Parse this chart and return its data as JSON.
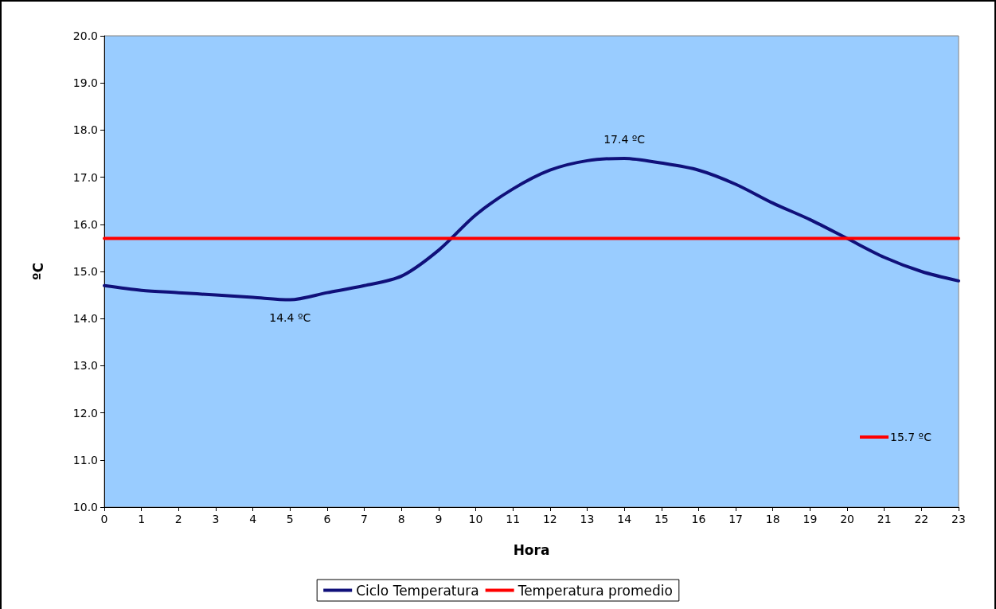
{
  "chart_data": {
    "type": "line",
    "xlabel": "Hora",
    "ylabel": "ºC",
    "x": [
      0,
      1,
      2,
      3,
      4,
      5,
      6,
      7,
      8,
      9,
      10,
      11,
      12,
      13,
      14,
      15,
      16,
      17,
      18,
      19,
      20,
      21,
      22,
      23
    ],
    "series": [
      {
        "name": "Ciclo Temperatura",
        "color": "#10107a",
        "values": [
          14.7,
          14.6,
          14.55,
          14.5,
          14.45,
          14.4,
          14.55,
          14.7,
          14.9,
          15.45,
          16.2,
          16.75,
          17.15,
          17.35,
          17.4,
          17.3,
          17.15,
          16.85,
          16.45,
          16.1,
          15.7,
          15.3,
          15.0,
          14.8
        ]
      },
      {
        "name": "Temperatura promedio",
        "color": "#ff0000",
        "x": [
          0,
          23
        ],
        "values": [
          15.7,
          15.7
        ]
      }
    ],
    "xlim": [
      0,
      23
    ],
    "xticks": [
      0,
      1,
      2,
      3,
      4,
      5,
      6,
      7,
      8,
      9,
      10,
      11,
      12,
      13,
      14,
      15,
      16,
      17,
      18,
      19,
      20,
      21,
      22,
      23
    ],
    "ylim": [
      10,
      20
    ],
    "yticks": [
      {
        "value": 10,
        "label": "10.0"
      },
      {
        "value": 11,
        "label": "11.0"
      },
      {
        "value": 12,
        "label": "12.0"
      },
      {
        "value": 13,
        "label": "13.0"
      },
      {
        "value": 14,
        "label": "14.0"
      },
      {
        "value": 15,
        "label": "15.0"
      },
      {
        "value": 16,
        "label": "16.0"
      },
      {
        "value": 17,
        "label": "17.0"
      },
      {
        "value": 18,
        "label": "18.0"
      },
      {
        "value": 19,
        "label": "19.0"
      },
      {
        "value": 20,
        "label": "20.0"
      }
    ],
    "annotations": [
      {
        "text": "17.4 ºC",
        "x": 14,
        "y": 17.4
      },
      {
        "text": "14.4 ºC",
        "x": 5,
        "y": 14.4
      },
      "15.7 ºC"
    ],
    "grid": false,
    "legend": "bottom",
    "marker": "none",
    "line_style": "solid"
  }
}
